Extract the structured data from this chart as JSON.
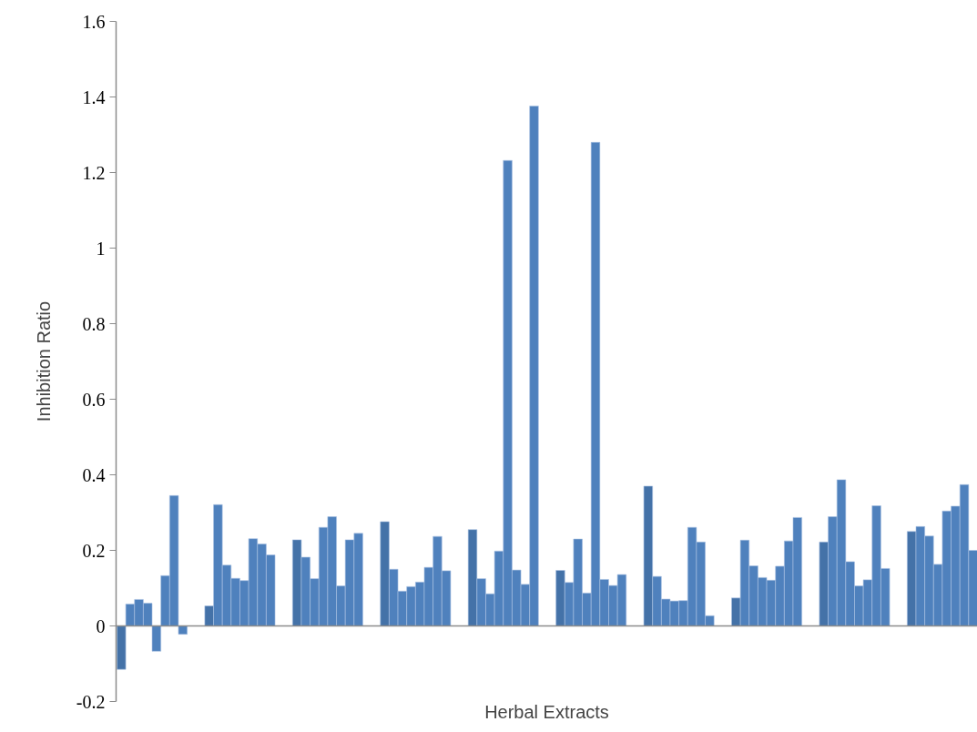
{
  "chart_data": {
    "type": "bar",
    "xlabel": "Herbal Extracts",
    "ylabel": "Inhibition Ratio",
    "categories": [
      null,
      null,
      null,
      null,
      null,
      null,
      null,
      null,
      null,
      null,
      null,
      null,
      null,
      null,
      null,
      null,
      null,
      null,
      null,
      null,
      null,
      null,
      null,
      null,
      null,
      null,
      null,
      null,
      null,
      null,
      null,
      null,
      null,
      null,
      null,
      null,
      null,
      null,
      null,
      null,
      null,
      null,
      null,
      null,
      null,
      null,
      null,
      null,
      null,
      null,
      null,
      null,
      null,
      null,
      null,
      null,
      null,
      null,
      null,
      null,
      null,
      null,
      null,
      null,
      null,
      null,
      null,
      null,
      null,
      null,
      null,
      null,
      null,
      null,
      null,
      null,
      null,
      null,
      null,
      null,
      null,
      null,
      null,
      null,
      null,
      null,
      null,
      null,
      null,
      null,
      null,
      null,
      null,
      null,
      null,
      null,
      null,
      null
    ],
    "values": [
      -0.115,
      0.058,
      0.07,
      0.06,
      -0.067,
      0.133,
      0.345,
      -0.022,
      null,
      null,
      0.053,
      0.321,
      0.161,
      0.126,
      0.12,
      0.231,
      0.217,
      0.188,
      null,
      null,
      0.228,
      0.182,
      0.125,
      0.261,
      0.289,
      0.106,
      0.228,
      0.245,
      null,
      null,
      0.276,
      0.15,
      0.092,
      0.104,
      0.116,
      0.155,
      0.237,
      0.146,
      null,
      null,
      0.255,
      0.125,
      0.085,
      0.198,
      1.232,
      0.148,
      0.11,
      1.376,
      null,
      null,
      0.147,
      0.115,
      0.23,
      0.087,
      1.28,
      0.123,
      0.107,
      0.136,
      null,
      null,
      0.37,
      0.131,
      0.071,
      0.066,
      0.067,
      0.261,
      0.222,
      0.027,
      null,
      null,
      0.074,
      0.227,
      0.159,
      0.128,
      0.121,
      0.158,
      0.225,
      0.287,
      null,
      null,
      0.222,
      0.289,
      0.387,
      0.17,
      0.106,
      0.122,
      0.318,
      0.152,
      null,
      null,
      0.25,
      0.263,
      0.238,
      0.163,
      0.304,
      0.317,
      0.374,
      0.2
    ],
    "colors": [
      "#4472a8",
      "#4f81bd",
      "#4f81bd",
      "#4f81bd",
      "#4f81bd",
      "#4f81bd",
      "#4f81bd",
      "#4f81bd",
      null,
      null,
      "#4472a8",
      "#4f81bd",
      "#4f81bd",
      "#4f81bd",
      "#4f81bd",
      "#4f81bd",
      "#4f81bd",
      "#4f81bd",
      null,
      null,
      "#4472a8",
      "#4f81bd",
      "#4f81bd",
      "#4f81bd",
      "#4f81bd",
      "#4f81bd",
      "#4f81bd",
      "#4f81bd",
      null,
      null,
      "#4472a8",
      "#4f81bd",
      "#4f81bd",
      "#4f81bd",
      "#4f81bd",
      "#4f81bd",
      "#4f81bd",
      "#4f81bd",
      null,
      null,
      "#4472a8",
      "#4f81bd",
      "#4f81bd",
      "#4f81bd",
      "#4f81bd",
      "#4f81bd",
      "#4f81bd",
      "#4f81bd",
      null,
      null,
      "#4472a8",
      "#4f81bd",
      "#4f81bd",
      "#4f81bd",
      "#4f81bd",
      "#4f81bd",
      "#4f81bd",
      "#4f81bd",
      null,
      null,
      "#4472a8",
      "#4f81bd",
      "#4f81bd",
      "#4f81bd",
      "#4f81bd",
      "#4f81bd",
      "#4f81bd",
      "#4f81bd",
      null,
      null,
      "#4472a8",
      "#4f81bd",
      "#4f81bd",
      "#4f81bd",
      "#4f81bd",
      "#4f81bd",
      "#4f81bd",
      "#4f81bd",
      null,
      null,
      "#4472a8",
      "#4f81bd",
      "#4f81bd",
      "#4f81bd",
      "#4f81bd",
      "#4f81bd",
      "#4f81bd",
      "#4f81bd",
      null,
      null,
      "#4472a8",
      "#4f81bd",
      "#4f81bd",
      "#4f81bd",
      "#4f81bd",
      "#4f81bd",
      "#4f81bd",
      "#4f81bd"
    ],
    "ylim": [
      -0.2,
      1.6
    ],
    "yticks": [
      -0.2,
      0,
      0.2,
      0.4,
      0.6,
      0.8,
      1,
      1.2,
      1.4,
      1.6
    ],
    "tick_labels": "y"
  }
}
